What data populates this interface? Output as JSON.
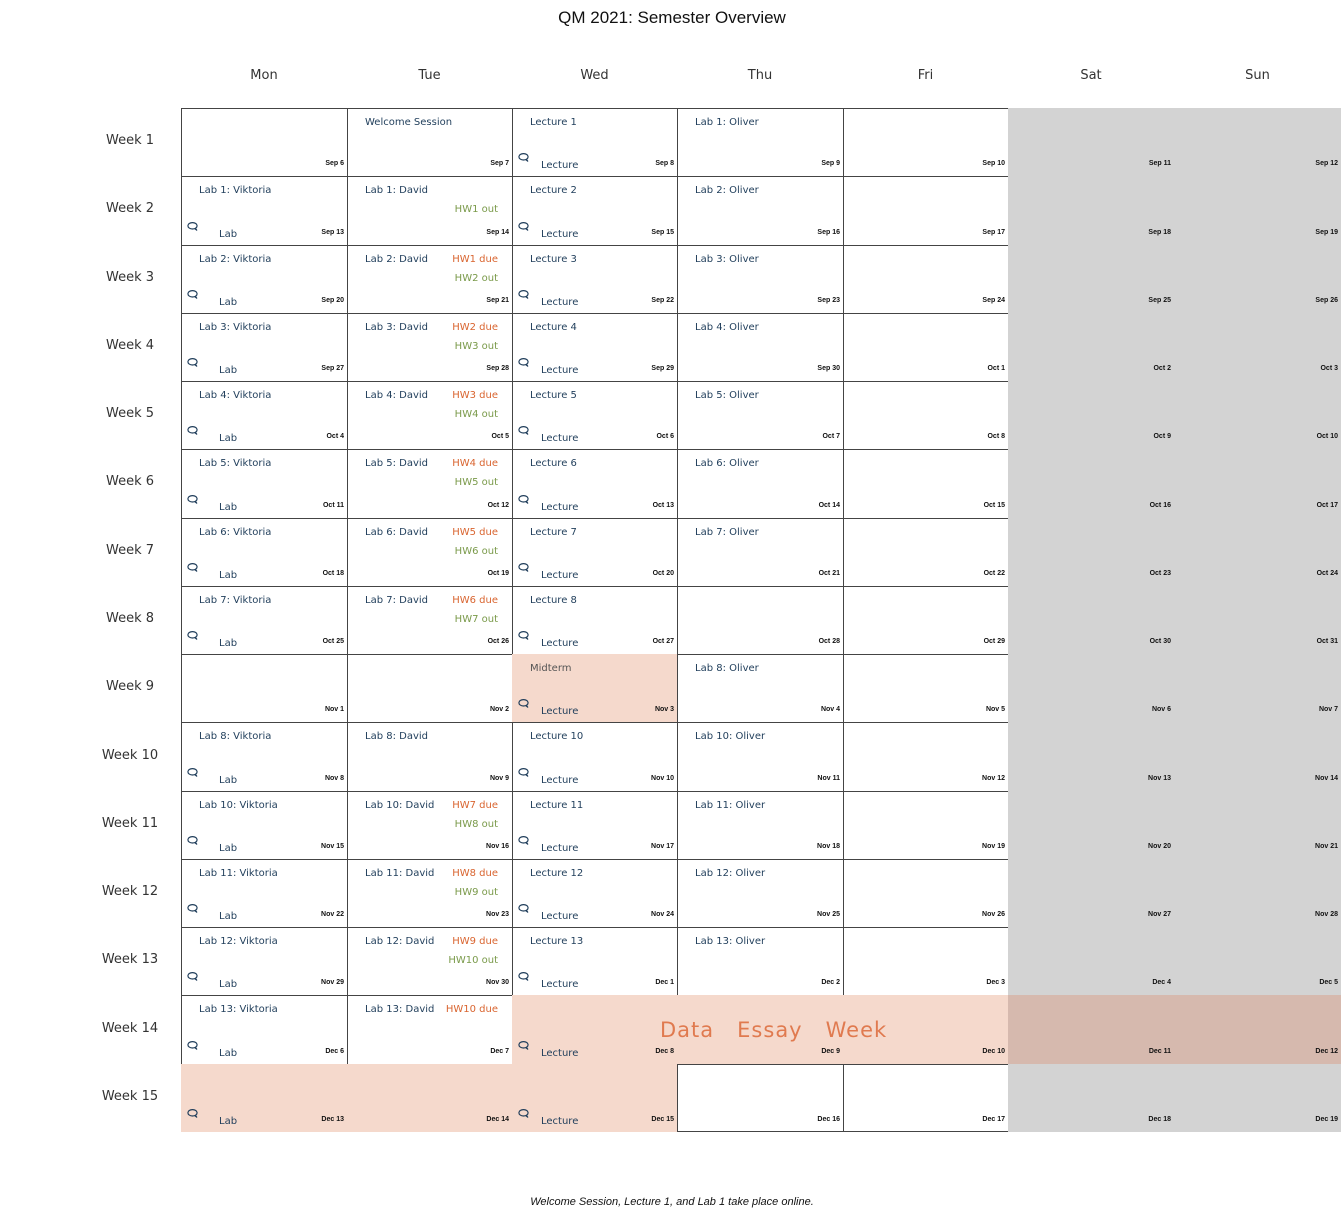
{
  "title": "QM 2021: Semester Overview",
  "days": [
    "Mon",
    "Tue",
    "Wed",
    "Thu",
    "Fri",
    "Sat",
    "Sun"
  ],
  "banner": "Data   Essay   Week",
  "footnote": "Welcome Session, Lecture 1, and Lab 1 take place online.",
  "colors": {
    "weekend": "#d3d3d3",
    "highlight": "#f5d9cc",
    "event_text": "#1f3d5a",
    "hw_due": "#d9642f",
    "hw_out": "#7a9a4a",
    "banner": "#e07a4f"
  },
  "weeks": [
    {
      "label": "Week 1",
      "days": [
        {
          "date": "Sep 6"
        },
        {
          "date": "Sep 7",
          "event": "Welcome Session"
        },
        {
          "date": "Sep 8",
          "event": "Lecture 1",
          "sub": "Lecture",
          "icon": true
        },
        {
          "date": "Sep 9",
          "event": "Lab 1: Oliver"
        },
        {
          "date": "Sep 10"
        },
        {
          "date": "Sep 11"
        },
        {
          "date": "Sep 12"
        }
      ]
    },
    {
      "label": "Week 2",
      "days": [
        {
          "date": "Sep 13",
          "event": "Lab 1: Viktoria",
          "sub": "Lab",
          "icon": true
        },
        {
          "date": "Sep 14",
          "event": "Lab 1: David",
          "hw_out": "HW1 out"
        },
        {
          "date": "Sep 15",
          "event": "Lecture 2",
          "sub": "Lecture",
          "icon": true
        },
        {
          "date": "Sep 16",
          "event": "Lab 2: Oliver"
        },
        {
          "date": "Sep 17"
        },
        {
          "date": "Sep 18"
        },
        {
          "date": "Sep 19"
        }
      ]
    },
    {
      "label": "Week 3",
      "days": [
        {
          "date": "Sep 20",
          "event": "Lab 2: Viktoria",
          "sub": "Lab",
          "icon": true
        },
        {
          "date": "Sep 21",
          "event": "Lab 2: David",
          "hw_due": "HW1 due",
          "hw_out": "HW2 out"
        },
        {
          "date": "Sep 22",
          "event": "Lecture 3",
          "sub": "Lecture",
          "icon": true
        },
        {
          "date": "Sep 23",
          "event": "Lab 3: Oliver"
        },
        {
          "date": "Sep 24"
        },
        {
          "date": "Sep 25"
        },
        {
          "date": "Sep 26"
        }
      ]
    },
    {
      "label": "Week 4",
      "days": [
        {
          "date": "Sep 27",
          "event": "Lab 3: Viktoria",
          "sub": "Lab",
          "icon": true
        },
        {
          "date": "Sep 28",
          "event": "Lab 3: David",
          "hw_due": "HW2 due",
          "hw_out": "HW3 out"
        },
        {
          "date": "Sep 29",
          "event": "Lecture 4",
          "sub": "Lecture",
          "icon": true
        },
        {
          "date": "Sep 30",
          "event": "Lab 4: Oliver"
        },
        {
          "date": "Oct 1"
        },
        {
          "date": "Oct 2"
        },
        {
          "date": "Oct 3"
        }
      ]
    },
    {
      "label": "Week 5",
      "days": [
        {
          "date": "Oct 4",
          "event": "Lab 4: Viktoria",
          "sub": "Lab",
          "icon": true
        },
        {
          "date": "Oct 5",
          "event": "Lab 4: David",
          "hw_due": "HW3 due",
          "hw_out": "HW4 out"
        },
        {
          "date": "Oct 6",
          "event": "Lecture 5",
          "sub": "Lecture",
          "icon": true
        },
        {
          "date": "Oct 7",
          "event": "Lab 5: Oliver"
        },
        {
          "date": "Oct 8"
        },
        {
          "date": "Oct 9"
        },
        {
          "date": "Oct 10"
        }
      ]
    },
    {
      "label": "Week 6",
      "days": [
        {
          "date": "Oct 11",
          "event": "Lab 5: Viktoria",
          "sub": "Lab",
          "icon": true
        },
        {
          "date": "Oct 12",
          "event": "Lab 5: David",
          "hw_due": "HW4 due",
          "hw_out": "HW5 out"
        },
        {
          "date": "Oct 13",
          "event": "Lecture 6",
          "sub": "Lecture",
          "icon": true
        },
        {
          "date": "Oct 14",
          "event": "Lab 6: Oliver"
        },
        {
          "date": "Oct 15"
        },
        {
          "date": "Oct 16"
        },
        {
          "date": "Oct 17"
        }
      ]
    },
    {
      "label": "Week 7",
      "days": [
        {
          "date": "Oct 18",
          "event": "Lab 6: Viktoria",
          "sub": "Lab",
          "icon": true
        },
        {
          "date": "Oct 19",
          "event": "Lab 6: David",
          "hw_due": "HW5 due",
          "hw_out": "HW6 out"
        },
        {
          "date": "Oct 20",
          "event": "Lecture 7",
          "sub": "Lecture",
          "icon": true
        },
        {
          "date": "Oct 21",
          "event": "Lab 7: Oliver"
        },
        {
          "date": "Oct 22"
        },
        {
          "date": "Oct 23"
        },
        {
          "date": "Oct 24"
        }
      ]
    },
    {
      "label": "Week 8",
      "days": [
        {
          "date": "Oct 25",
          "event": "Lab 7: Viktoria",
          "sub": "Lab",
          "icon": true
        },
        {
          "date": "Oct 26",
          "event": "Lab 7: David",
          "hw_due": "HW6 due",
          "hw_out": "HW7 out"
        },
        {
          "date": "Oct 27",
          "event": "Lecture 8",
          "sub": "Lecture",
          "icon": true
        },
        {
          "date": "Oct 28"
        },
        {
          "date": "Oct 29"
        },
        {
          "date": "Oct 30"
        },
        {
          "date": "Oct 31"
        }
      ]
    },
    {
      "label": "Week 9",
      "days": [
        {
          "date": "Nov 1"
        },
        {
          "date": "Nov 2"
        },
        {
          "date": "Nov 3",
          "event": "Midterm",
          "sub": "Lecture",
          "icon": true,
          "highlight": true
        },
        {
          "date": "Nov 4",
          "event": "Lab 8: Oliver"
        },
        {
          "date": "Nov 5"
        },
        {
          "date": "Nov 6"
        },
        {
          "date": "Nov 7"
        }
      ]
    },
    {
      "label": "Week 10",
      "days": [
        {
          "date": "Nov 8",
          "event": "Lab 8: Viktoria",
          "sub": "Lab",
          "icon": true
        },
        {
          "date": "Nov 9",
          "event": "Lab 8: David"
        },
        {
          "date": "Nov 10",
          "event": "Lecture 10",
          "sub": "Lecture",
          "icon": true
        },
        {
          "date": "Nov 11",
          "event": "Lab 10: Oliver"
        },
        {
          "date": "Nov 12"
        },
        {
          "date": "Nov 13"
        },
        {
          "date": "Nov 14"
        }
      ]
    },
    {
      "label": "Week 11",
      "days": [
        {
          "date": "Nov 15",
          "event": "Lab 10: Viktoria",
          "sub": "Lab",
          "icon": true
        },
        {
          "date": "Nov 16",
          "event": "Lab 10: David",
          "hw_due": "HW7 due",
          "hw_out": "HW8 out"
        },
        {
          "date": "Nov 17",
          "event": "Lecture 11",
          "sub": "Lecture",
          "icon": true
        },
        {
          "date": "Nov 18",
          "event": "Lab 11: Oliver"
        },
        {
          "date": "Nov 19"
        },
        {
          "date": "Nov 20"
        },
        {
          "date": "Nov 21"
        }
      ]
    },
    {
      "label": "Week 12",
      "days": [
        {
          "date": "Nov 22",
          "event": "Lab 11: Viktoria",
          "sub": "Lab",
          "icon": true
        },
        {
          "date": "Nov 23",
          "event": "Lab 11: David",
          "hw_due": "HW8 due",
          "hw_out": "HW9 out"
        },
        {
          "date": "Nov 24",
          "event": "Lecture 12",
          "sub": "Lecture",
          "icon": true
        },
        {
          "date": "Nov 25",
          "event": "Lab 12: Oliver"
        },
        {
          "date": "Nov 26"
        },
        {
          "date": "Nov 27"
        },
        {
          "date": "Nov 28"
        }
      ]
    },
    {
      "label": "Week 13",
      "days": [
        {
          "date": "Nov 29",
          "event": "Lab 12: Viktoria",
          "sub": "Lab",
          "icon": true
        },
        {
          "date": "Nov 30",
          "event": "Lab 12: David",
          "hw_due": "HW9 due",
          "hw_out": "HW10 out"
        },
        {
          "date": "Dec 1",
          "event": "Lecture 13",
          "sub": "Lecture",
          "icon": true
        },
        {
          "date": "Dec 2",
          "event": "Lab 13: Oliver"
        },
        {
          "date": "Dec 3"
        },
        {
          "date": "Dec 4"
        },
        {
          "date": "Dec 5"
        }
      ]
    },
    {
      "label": "Week 14",
      "days": [
        {
          "date": "Dec 6",
          "event": "Lab 13: Viktoria",
          "sub": "Lab",
          "icon": true
        },
        {
          "date": "Dec 7",
          "event": "Lab 13: David",
          "hw_due": "HW10 due"
        },
        {
          "date": "Dec 8",
          "sub": "Lecture",
          "icon": true,
          "highlight": true
        },
        {
          "date": "Dec 9",
          "highlight": true
        },
        {
          "date": "Dec 10",
          "highlight": true
        },
        {
          "date": "Dec 11",
          "highlight": true
        },
        {
          "date": "Dec 12",
          "highlight": true
        }
      ]
    },
    {
      "label": "Week 15",
      "days": [
        {
          "date": "Dec 13",
          "sub": "Lab",
          "icon": true,
          "highlight": true
        },
        {
          "date": "Dec 14",
          "highlight": true
        },
        {
          "date": "Dec 15",
          "sub": "Lecture",
          "icon": true,
          "highlight": true
        },
        {
          "date": "Dec 16"
        },
        {
          "date": "Dec 17"
        },
        {
          "date": "Dec 18"
        },
        {
          "date": "Dec 19"
        }
      ]
    }
  ]
}
